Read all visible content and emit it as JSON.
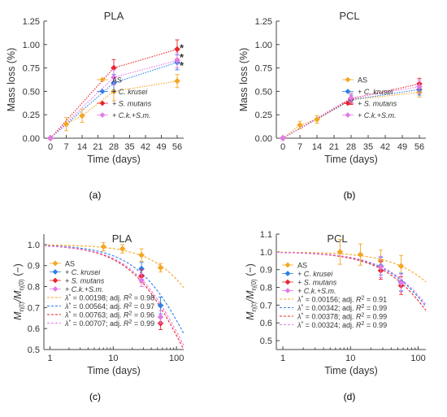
{
  "colors": {
    "AS": "#f5a623",
    "CK": "#2e7fe8",
    "SM": "#e8242d",
    "CKSM": "#e37ae6",
    "axis": "#444444",
    "text": "#333333"
  },
  "chart_data": [
    {
      "id": "a",
      "type": "line",
      "title": "PLA",
      "tag": "(a)",
      "xlabel": "Time (days)",
      "ylabel": "Mass loss (%)",
      "xlim": [
        0,
        56
      ],
      "ylim": [
        0,
        1.25
      ],
      "xticks": [
        0,
        7,
        14,
        21,
        28,
        35,
        42,
        49,
        56
      ],
      "yticks": [
        0,
        0.25,
        0.5,
        0.75,
        1.0,
        1.25
      ],
      "ytick_labels": [
        "0.00",
        "0.25",
        "0.50",
        "0.75",
        "1.00",
        "1.25"
      ],
      "xtick_labels": [
        "0",
        "7",
        "14",
        "21",
        "28",
        "35",
        "42",
        "49",
        "56"
      ],
      "legend_position": "bottom-right",
      "series": [
        {
          "key": "AS",
          "name": "AS",
          "italic": false,
          "x": [
            0,
            7,
            14,
            28,
            56
          ],
          "y": [
            0,
            0.15,
            0.24,
            0.5,
            0.61
          ],
          "err": [
            0,
            0.07,
            0.07,
            0.1,
            0.07
          ]
        },
        {
          "key": "CK",
          "name": "+ C. krusei",
          "italic": true,
          "x": [
            0,
            28,
            56
          ],
          "y": [
            0,
            0.59,
            0.81
          ],
          "err": [
            0,
            0.09,
            0.08
          ]
        },
        {
          "key": "SM",
          "name": "+ S. mutans",
          "italic": true,
          "x": [
            0,
            28,
            56
          ],
          "y": [
            0,
            0.75,
            0.95
          ],
          "err": [
            0,
            0.09,
            0.1
          ]
        },
        {
          "key": "CKSM",
          "name": "+ C.k.+S.m.",
          "italic": true,
          "x": [
            0,
            28,
            56
          ],
          "y": [
            0,
            0.65,
            0.83
          ],
          "err": [
            0,
            0.08,
            0.08
          ]
        }
      ],
      "annotations": [
        {
          "text": "*",
          "key": "SM",
          "x": 58,
          "y": 0.97
        },
        {
          "text": "*",
          "key": "CKSM",
          "x": 58,
          "y": 0.87
        },
        {
          "text": "*",
          "key": "CK",
          "x": 58,
          "y": 0.78
        }
      ]
    },
    {
      "id": "b",
      "type": "line",
      "title": "PCL",
      "tag": "(b)",
      "xlabel": "Time (days)",
      "ylabel": "Mass loss (%)",
      "xlim": [
        0,
        56
      ],
      "ylim": [
        0,
        1.25
      ],
      "xticks": [
        0,
        7,
        14,
        21,
        28,
        35,
        42,
        49,
        56
      ],
      "yticks": [
        0,
        0.25,
        0.5,
        0.75,
        1.0,
        1.25
      ],
      "ytick_labels": [
        "0.00",
        "0.25",
        "0.50",
        "0.75",
        "1.00",
        "1.25"
      ],
      "xtick_labels": [
        "0",
        "7",
        "14",
        "21",
        "28",
        "35",
        "42",
        "49",
        "56"
      ],
      "legend_position": "bottom-right",
      "series": [
        {
          "key": "AS",
          "name": "AS",
          "italic": false,
          "x": [
            0,
            7,
            14,
            28,
            56
          ],
          "y": [
            0,
            0.14,
            0.2,
            0.41,
            0.49
          ],
          "err": [
            0,
            0.04,
            0.04,
            0.05,
            0.05
          ]
        },
        {
          "key": "CK",
          "name": "+ C. krusei",
          "italic": true,
          "x": [
            0,
            28,
            56
          ],
          "y": [
            0,
            0.41,
            0.52
          ],
          "err": [
            0,
            0.05,
            0.06
          ]
        },
        {
          "key": "SM",
          "name": "+ S. mutans",
          "italic": true,
          "x": [
            0,
            28,
            56
          ],
          "y": [
            0,
            0.42,
            0.58
          ],
          "err": [
            0,
            0.06,
            0.06
          ]
        },
        {
          "key": "CKSM",
          "name": "+ C.k.+S.m.",
          "italic": true,
          "x": [
            0,
            28,
            56
          ],
          "y": [
            0,
            0.43,
            0.55
          ],
          "err": [
            0,
            0.05,
            0.07
          ]
        }
      ],
      "annotations": []
    },
    {
      "id": "c",
      "type": "scatter",
      "title": "PLA",
      "tag": "(c)",
      "xlabel": "Time (days)",
      "ylabel_parts": {
        "base": "M",
        "sub1": "η(t)",
        "sep": "/M",
        "sub2": "η(0)",
        "unit": " (−)"
      },
      "xscale": "log",
      "xlim": [
        0.8,
        130
      ],
      "ylim": [
        0.5,
        1.05
      ],
      "xticks": [
        1,
        10,
        100
      ],
      "xtick_labels": [
        "1",
        "10",
        "100"
      ],
      "yticks": [
        0.5,
        0.6,
        0.7,
        0.8,
        0.9,
        1.0
      ],
      "ytick_labels": [
        "0.5",
        "0.6",
        "0.7",
        "0.8",
        "0.9",
        "1.0"
      ],
      "legend_position": "bottom-left",
      "series": [
        {
          "key": "AS",
          "name": "AS",
          "italic": false,
          "x": [
            7,
            14,
            28,
            56
          ],
          "y": [
            0.99,
            0.98,
            0.95,
            0.89
          ],
          "err": [
            0.02,
            0.02,
            0.03,
            0.02
          ]
        },
        {
          "key": "CK",
          "name": "+ C. krusei",
          "italic": true,
          "x": [
            28,
            56
          ],
          "y": [
            0.885,
            0.71
          ],
          "err": [
            0.03,
            0.04
          ]
        },
        {
          "key": "SM",
          "name": "+ S. mutans",
          "italic": true,
          "x": [
            28,
            56
          ],
          "y": [
            0.85,
            0.625
          ],
          "err": [
            0.03,
            0.03
          ]
        },
        {
          "key": "CKSM",
          "name": "+ C.k.+S.m.",
          "italic": true,
          "x": [
            28,
            56
          ],
          "y": [
            0.83,
            0.655
          ],
          "err": [
            0.03,
            0.03
          ]
        }
      ],
      "fits": [
        {
          "key": "AS",
          "lambda": 0.00198,
          "lambda_text": "0.00198",
          "r2_text": "0.98"
        },
        {
          "key": "CK",
          "lambda": 0.00564,
          "lambda_text": "0.00564",
          "r2_text": "0.97"
        },
        {
          "key": "SM",
          "lambda": 0.00763,
          "lambda_text": "0.00763",
          "r2_text": "0.96"
        },
        {
          "key": "CKSM",
          "lambda": 0.00707,
          "lambda_text": "0.00707",
          "r2_text": "0.99"
        }
      ],
      "fit_label": {
        "sym": "λ",
        "sup": "*",
        "eq": " = ",
        "mid": "; adj. ",
        "r": "R",
        "r_sup": "2",
        "eq2": " = "
      }
    },
    {
      "id": "d",
      "type": "scatter",
      "title": "PCL",
      "tag": "(d)",
      "xlabel": "Time (days)",
      "ylabel_parts": {
        "base": "M",
        "sub1": "η(t)",
        "sep": "/M",
        "sub2": "η(0)",
        "unit": " (−)"
      },
      "xscale": "log",
      "xlim": [
        0.8,
        130
      ],
      "ylim": [
        0.45,
        1.1
      ],
      "xticks": [
        1,
        10,
        100
      ],
      "xtick_labels": [
        "1",
        "10",
        "100"
      ],
      "yticks": [
        0.5,
        0.6,
        0.7,
        0.8,
        0.9,
        1.0,
        1.1
      ],
      "ytick_labels": [
        "0.5",
        "0.6",
        "0.7",
        "0.8",
        "0.9",
        "1.0",
        "1.1"
      ],
      "legend_position": "bottom-left",
      "series": [
        {
          "key": "AS",
          "name": "AS",
          "italic": false,
          "x": [
            7,
            14,
            28,
            56
          ],
          "y": [
            1.0,
            0.985,
            0.95,
            0.92
          ],
          "err": [
            0.07,
            0.06,
            0.06,
            0.06
          ]
        },
        {
          "key": "CK",
          "name": "+ C. krusei",
          "italic": true,
          "x": [
            28,
            56
          ],
          "y": [
            0.92,
            0.83
          ],
          "err": [
            0.05,
            0.05
          ]
        },
        {
          "key": "SM",
          "name": "+ S. mutans",
          "italic": true,
          "x": [
            28,
            56
          ],
          "y": [
            0.895,
            0.81
          ],
          "err": [
            0.05,
            0.05
          ]
        },
        {
          "key": "CKSM",
          "name": "+ C.k.+S.m.",
          "italic": true,
          "x": [
            28,
            56
          ],
          "y": [
            0.915,
            0.825
          ],
          "err": [
            0.06,
            0.05
          ]
        }
      ],
      "fits": [
        {
          "key": "AS",
          "lambda": 0.00156,
          "lambda_text": "0.00156",
          "r2_text": "0.91"
        },
        {
          "key": "CK",
          "lambda": 0.00342,
          "lambda_text": "0.00342",
          "r2_text": "0.99"
        },
        {
          "key": "SM",
          "lambda": 0.00378,
          "lambda_text": "0.00378",
          "r2_text": "0.99"
        },
        {
          "key": "CKSM",
          "lambda": 0.00324,
          "lambda_text": "0.00324",
          "r2_text": "0.99"
        }
      ],
      "fit_label": {
        "sym": "λ",
        "sup": "*",
        "eq": " = ",
        "mid": "; adj. ",
        "r": "R",
        "r_sup": "2",
        "eq2": " = "
      }
    }
  ]
}
